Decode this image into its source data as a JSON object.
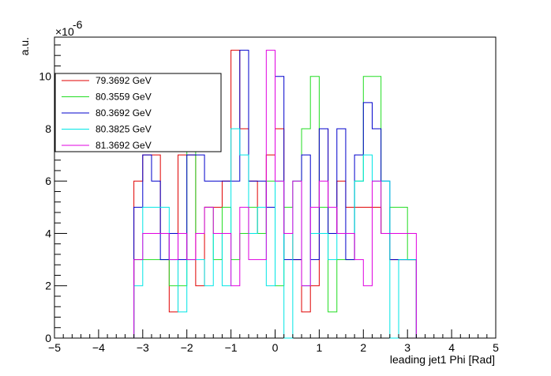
{
  "chart_data": {
    "type": "line",
    "style": "step-histogram",
    "xlabel": "leading jet1 Phi [Rad]",
    "ylabel": "a.u.",
    "y_exponent_label": "×10",
    "y_exponent": "-6",
    "xlim": [
      -5,
      5
    ],
    "ylim": [
      0,
      11.5
    ],
    "x_ticks": [
      -5,
      -4,
      -3,
      -2,
      -1,
      0,
      1,
      2,
      3,
      4,
      5
    ],
    "y_ticks": [
      0,
      2,
      4,
      6,
      8,
      10
    ],
    "grid": false,
    "legend_position": "top-left",
    "bin_edges": [
      -3.2,
      -3.0,
      -2.8,
      -2.6,
      -2.4,
      -2.2,
      -2.0,
      -1.8,
      -1.6,
      -1.4,
      -1.2,
      -1.0,
      -0.8,
      -0.6,
      -0.4,
      -0.2,
      0.0,
      0.2,
      0.4,
      0.6,
      0.8,
      1.0,
      1.2,
      1.4,
      1.6,
      1.8,
      2.0,
      2.2,
      2.4,
      2.6,
      2.8,
      3.0,
      3.2
    ],
    "series": [
      {
        "name": "79.3692 GeV",
        "color": "#e00000",
        "values": [
          6,
          7,
          7,
          4,
          1,
          7,
          7,
          2,
          5,
          5,
          6,
          11,
          8,
          6,
          4,
          7,
          8,
          4,
          3,
          1,
          2,
          8,
          4,
          6,
          5,
          5,
          5,
          5,
          4,
          3,
          3,
          3
        ]
      },
      {
        "name": "80.3559 GeV",
        "color": "#22dd22",
        "values": [
          3,
          3,
          3,
          3,
          2,
          2,
          8,
          4,
          5,
          3,
          5,
          3,
          4,
          5,
          4,
          6,
          2,
          5,
          6,
          8,
          10,
          5,
          1,
          3,
          3,
          6,
          10,
          10,
          4,
          5,
          5,
          3
        ]
      },
      {
        "name": "80.3692 GeV",
        "color": "#0000cc",
        "values": [
          5,
          7,
          6,
          3,
          4,
          3,
          7,
          7,
          6,
          6,
          6,
          6,
          11,
          6,
          6,
          5,
          10,
          3,
          3,
          7,
          3,
          8,
          4,
          8,
          3,
          7,
          9,
          8,
          6,
          3,
          3,
          3
        ]
      },
      {
        "name": "80.3825 GeV",
        "color": "#00e5e5",
        "values": [
          2,
          5,
          5,
          5,
          3,
          1,
          3,
          3,
          2,
          4,
          2,
          8,
          7,
          4,
          5,
          2,
          6,
          0,
          6,
          2,
          4,
          4,
          3,
          4,
          4,
          6,
          7,
          6,
          6,
          0,
          3,
          3
        ]
      },
      {
        "name": "81.3692 GeV",
        "color": "#e000e0",
        "values": [
          3,
          4,
          4,
          4,
          3,
          4,
          3,
          4,
          5,
          4,
          4,
          2,
          5,
          3,
          3,
          11,
          6,
          4,
          6,
          2,
          5,
          6,
          5,
          4,
          4,
          3,
          2,
          6,
          4,
          4,
          4,
          4
        ]
      }
    ]
  }
}
